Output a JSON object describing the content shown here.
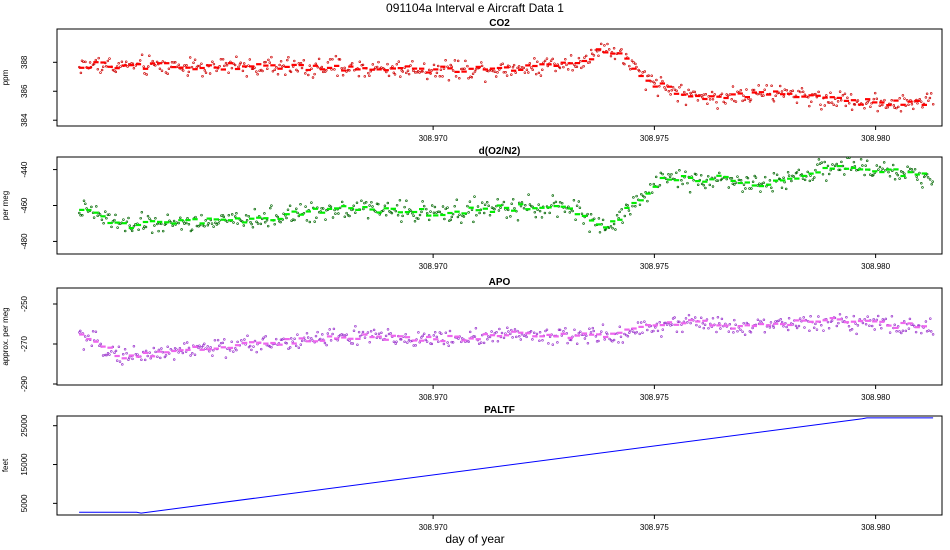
{
  "figure": {
    "title": "091104a   Interval e Aircraft Data 1",
    "xlabel": "day of year"
  },
  "chart_data": [
    {
      "type": "scatter",
      "title": "CO2",
      "ylabel": "ppm",
      "xlim": [
        308.9615,
        308.9815
      ],
      "ylim": [
        383.6,
        390.3
      ],
      "xticks": [
        308.97,
        308.975,
        308.98
      ],
      "xtick_labels": [
        "308.970",
        "308.975",
        "308.980"
      ],
      "yticks": [
        384,
        386,
        388
      ],
      "ytick_labels": [
        "384",
        "386",
        "388"
      ],
      "grid": false,
      "color_points": "#cc0000",
      "color_means": "#ff0000",
      "x_range": [
        308.962,
        308.9813
      ],
      "trend": [
        [
          308.962,
          387.8
        ],
        [
          308.966,
          387.7
        ],
        [
          308.968,
          387.6
        ],
        [
          308.97,
          387.5
        ],
        [
          308.972,
          387.6
        ],
        [
          308.9735,
          388.2
        ],
        [
          308.9738,
          389.0
        ],
        [
          308.9742,
          388.6
        ],
        [
          308.9748,
          386.8
        ],
        [
          308.9755,
          386.0
        ],
        [
          308.976,
          385.6
        ],
        [
          308.977,
          385.7
        ],
        [
          308.978,
          385.9
        ],
        [
          308.979,
          385.4
        ],
        [
          308.98,
          385.2
        ],
        [
          308.9813,
          385.3
        ]
      ],
      "noise": 0.75
    },
    {
      "type": "scatter",
      "title": "d(O2/N2)",
      "ylabel": "per meg",
      "xlim": [
        308.9615,
        308.9815
      ],
      "ylim": [
        -487,
        -433
      ],
      "xticks": [
        308.97,
        308.975,
        308.98
      ],
      "xtick_labels": [
        "308.970",
        "308.975",
        "308.980"
      ],
      "yticks": [
        -480,
        -460,
        -440
      ],
      "ytick_labels": [
        "-480",
        "-460",
        "-440"
      ],
      "grid": false,
      "color_points": "#006600",
      "color_means": "#00ee00",
      "x_range": [
        308.962,
        308.9813
      ],
      "trend": [
        [
          308.962,
          -462
        ],
        [
          308.963,
          -471
        ],
        [
          308.964,
          -470
        ],
        [
          308.966,
          -468
        ],
        [
          308.968,
          -461
        ],
        [
          308.97,
          -464
        ],
        [
          308.972,
          -461
        ],
        [
          308.973,
          -461
        ],
        [
          308.9735,
          -467
        ],
        [
          308.974,
          -472
        ],
        [
          308.9745,
          -460
        ],
        [
          308.9752,
          -445
        ],
        [
          308.9765,
          -445
        ],
        [
          308.9775,
          -449
        ],
        [
          308.9785,
          -441
        ],
        [
          308.979,
          -439
        ],
        [
          308.98,
          -440
        ],
        [
          308.9813,
          -444
        ]
      ],
      "noise": 6
    },
    {
      "type": "scatter",
      "title": "APO",
      "ylabel": "approx. per meg",
      "xlim": [
        308.9615,
        308.9815
      ],
      "ylim": [
        -290.5,
        -242
      ],
      "xticks": [
        308.97,
        308.975,
        308.98
      ],
      "xtick_labels": [
        "308.970",
        "308.975",
        "308.980"
      ],
      "yticks": [
        -290,
        -270,
        -250
      ],
      "ytick_labels": [
        "-290",
        "-270",
        "-250"
      ],
      "grid": false,
      "color_points": "#9933cc",
      "color_means": "#ee66ee",
      "x_range": [
        308.962,
        308.9813
      ],
      "trend": [
        [
          308.962,
          -266
        ],
        [
          308.963,
          -276
        ],
        [
          308.964,
          -274
        ],
        [
          308.966,
          -270
        ],
        [
          308.968,
          -266
        ],
        [
          308.97,
          -268
        ],
        [
          308.972,
          -265
        ],
        [
          308.974,
          -266
        ],
        [
          308.975,
          -261
        ],
        [
          308.976,
          -259
        ],
        [
          308.977,
          -262
        ],
        [
          308.978,
          -260
        ],
        [
          308.979,
          -258
        ],
        [
          308.98,
          -260
        ],
        [
          308.9813,
          -262
        ]
      ],
      "noise": 5
    },
    {
      "type": "line",
      "title": "PALTF",
      "ylabel": "feet",
      "xlim": [
        308.9615,
        308.9815
      ],
      "ylim": [
        2000,
        27500
      ],
      "xticks": [
        308.97,
        308.975,
        308.98
      ],
      "xtick_labels": [
        "308.970",
        "308.975",
        "308.980"
      ],
      "yticks": [
        5000,
        15000,
        25000
      ],
      "ytick_labels": [
        "5000",
        "15000",
        "25000"
      ],
      "grid": false,
      "color_line": "#0000ff",
      "x": [
        308.962,
        308.9633,
        308.9634,
        308.9797,
        308.9798,
        308.9813
      ],
      "y": [
        2700,
        2700,
        2500,
        26800,
        27000,
        27000
      ]
    }
  ]
}
